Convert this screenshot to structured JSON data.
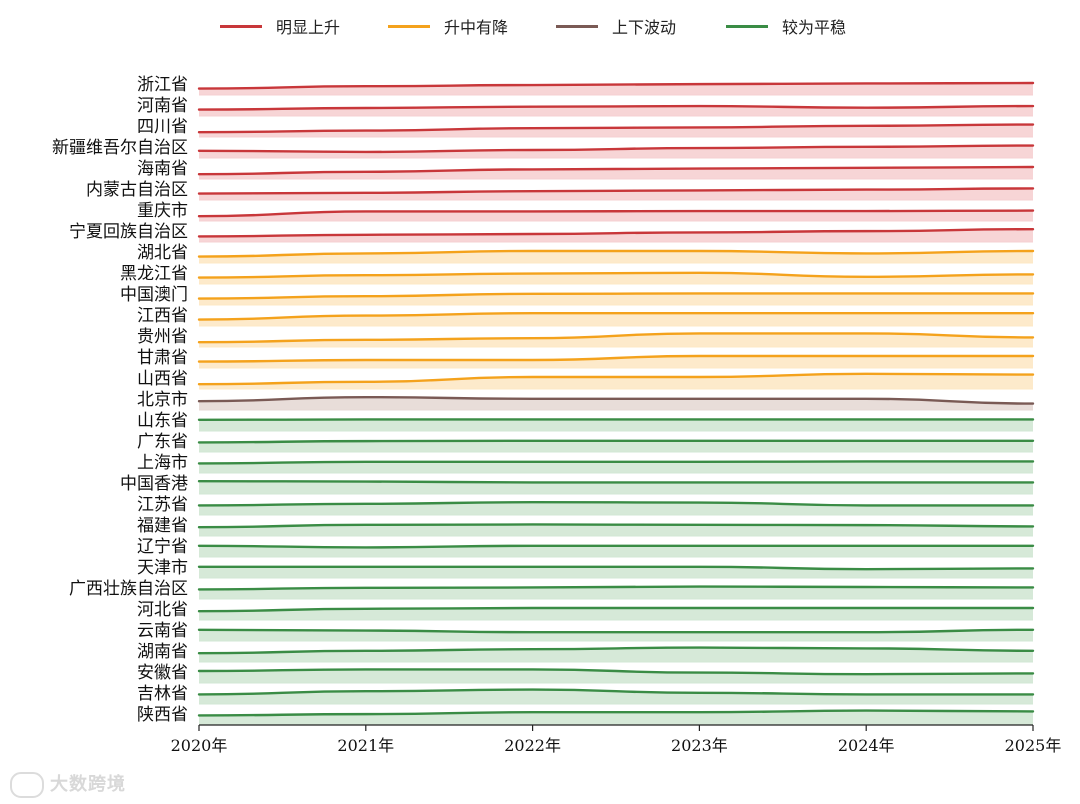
{
  "legend": [
    {
      "label": "明显上升",
      "color": "#c8373a"
    },
    {
      "label": "升中有降",
      "color": "#f4a21c"
    },
    {
      "label": "上下波动",
      "color": "#7a5a55"
    },
    {
      "label": "较为平稳",
      "color": "#3a8c45"
    }
  ],
  "watermark": "大数跨境",
  "chart_data": {
    "type": "area",
    "title": "",
    "x": [
      "2020年",
      "2021年",
      "2022年",
      "2023年",
      "2024年",
      "2025年"
    ],
    "groups": {
      "明显上升": {
        "color": "#c8373a",
        "fill": "#f6d0d1"
      },
      "升中有降": {
        "color": "#f4a21c",
        "fill": "#fde8c5"
      },
      "上下波动": {
        "color": "#7a5a55",
        "fill": "#e6d9d5"
      },
      "较为平稳": {
        "color": "#3a8c45",
        "fill": "#d2e7d4"
      }
    },
    "series": [
      {
        "name": "浙江省",
        "group": "明显上升",
        "values": [
          0.4,
          0.55,
          0.62,
          0.68,
          0.72,
          0.75
        ]
      },
      {
        "name": "河南省",
        "group": "明显上升",
        "values": [
          0.4,
          0.5,
          0.58,
          0.62,
          0.52,
          0.62
        ]
      },
      {
        "name": "四川省",
        "group": "明显上升",
        "values": [
          0.3,
          0.4,
          0.55,
          0.6,
          0.7,
          0.78
        ]
      },
      {
        "name": "新疆维吾尔自治区",
        "group": "明显上升",
        "values": [
          0.45,
          0.38,
          0.5,
          0.62,
          0.7,
          0.78
        ]
      },
      {
        "name": "海南省",
        "group": "明显上升",
        "values": [
          0.3,
          0.45,
          0.6,
          0.65,
          0.7,
          0.75
        ]
      },
      {
        "name": "内蒙古自治区",
        "group": "明显上升",
        "values": [
          0.4,
          0.45,
          0.55,
          0.6,
          0.65,
          0.72
        ]
      },
      {
        "name": "重庆市",
        "group": "明显上升",
        "values": [
          0.3,
          0.6,
          0.6,
          0.62,
          0.62,
          0.65
        ]
      },
      {
        "name": "宁夏回族自治区",
        "group": "明显上升",
        "values": [
          0.35,
          0.45,
          0.5,
          0.6,
          0.68,
          0.8
        ]
      },
      {
        "name": "湖北省",
        "group": "升中有降",
        "values": [
          0.4,
          0.6,
          0.75,
          0.75,
          0.6,
          0.75
        ]
      },
      {
        "name": "黑龙江省",
        "group": "升中有降",
        "values": [
          0.4,
          0.55,
          0.65,
          0.7,
          0.45,
          0.6
        ]
      },
      {
        "name": "中国澳门",
        "group": "升中有降",
        "values": [
          0.4,
          0.55,
          0.7,
          0.72,
          0.72,
          0.72
        ]
      },
      {
        "name": "江西省",
        "group": "升中有降",
        "values": [
          0.4,
          0.65,
          0.8,
          0.8,
          0.8,
          0.8
        ]
      },
      {
        "name": "贵州省",
        "group": "升中有降",
        "values": [
          0.3,
          0.45,
          0.55,
          0.85,
          0.85,
          0.6
        ]
      },
      {
        "name": "甘肃省",
        "group": "升中有降",
        "values": [
          0.4,
          0.5,
          0.5,
          0.75,
          0.75,
          0.75
        ]
      },
      {
        "name": "山西省",
        "group": "升中有降",
        "values": [
          0.3,
          0.45,
          0.75,
          0.75,
          0.95,
          0.9
        ]
      },
      {
        "name": "北京市",
        "group": "上下波动",
        "values": [
          0.55,
          0.8,
          0.7,
          0.7,
          0.7,
          0.4
        ]
      },
      {
        "name": "山东省",
        "group": "较为平稳",
        "values": [
          0.7,
          0.72,
          0.72,
          0.72,
          0.72,
          0.72
        ]
      },
      {
        "name": "广东省",
        "group": "较为平稳",
        "values": [
          0.6,
          0.68,
          0.7,
          0.7,
          0.7,
          0.7
        ]
      },
      {
        "name": "上海市",
        "group": "较为平稳",
        "values": [
          0.6,
          0.7,
          0.7,
          0.7,
          0.72,
          0.72
        ]
      },
      {
        "name": "中国香港",
        "group": "较为平稳",
        "values": [
          0.8,
          0.78,
          0.72,
          0.72,
          0.72,
          0.72
        ]
      },
      {
        "name": "江苏省",
        "group": "较为平稳",
        "values": [
          0.6,
          0.7,
          0.8,
          0.78,
          0.6,
          0.6
        ]
      },
      {
        "name": "福建省",
        "group": "较为平稳",
        "values": [
          0.55,
          0.7,
          0.72,
          0.7,
          0.68,
          0.6
        ]
      },
      {
        "name": "辽宁省",
        "group": "较为平稳",
        "values": [
          0.7,
          0.6,
          0.7,
          0.7,
          0.7,
          0.7
        ]
      },
      {
        "name": "天津市",
        "group": "较为平稳",
        "values": [
          0.7,
          0.7,
          0.7,
          0.7,
          0.55,
          0.6
        ]
      },
      {
        "name": "广西壮族自治区",
        "group": "较为平稳",
        "values": [
          0.6,
          0.7,
          0.72,
          0.78,
          0.75,
          0.72
        ]
      },
      {
        "name": "河北省",
        "group": "较为平稳",
        "values": [
          0.55,
          0.7,
          0.75,
          0.75,
          0.75,
          0.75
        ]
      },
      {
        "name": "云南省",
        "group": "较为平稳",
        "values": [
          0.7,
          0.65,
          0.55,
          0.55,
          0.55,
          0.7
        ]
      },
      {
        "name": "湖南省",
        "group": "较为平稳",
        "values": [
          0.55,
          0.7,
          0.8,
          0.9,
          0.85,
          0.7
        ]
      },
      {
        "name": "安徽省",
        "group": "较为平稳",
        "values": [
          0.75,
          0.85,
          0.85,
          0.65,
          0.55,
          0.6
        ]
      },
      {
        "name": "吉林省",
        "group": "较为平稳",
        "values": [
          0.6,
          0.8,
          0.9,
          0.7,
          0.6,
          0.6
        ]
      },
      {
        "name": "陕西省",
        "group": "较为平稳",
        "values": [
          0.6,
          0.68,
          0.8,
          0.8,
          0.9,
          0.85
        ]
      }
    ]
  }
}
